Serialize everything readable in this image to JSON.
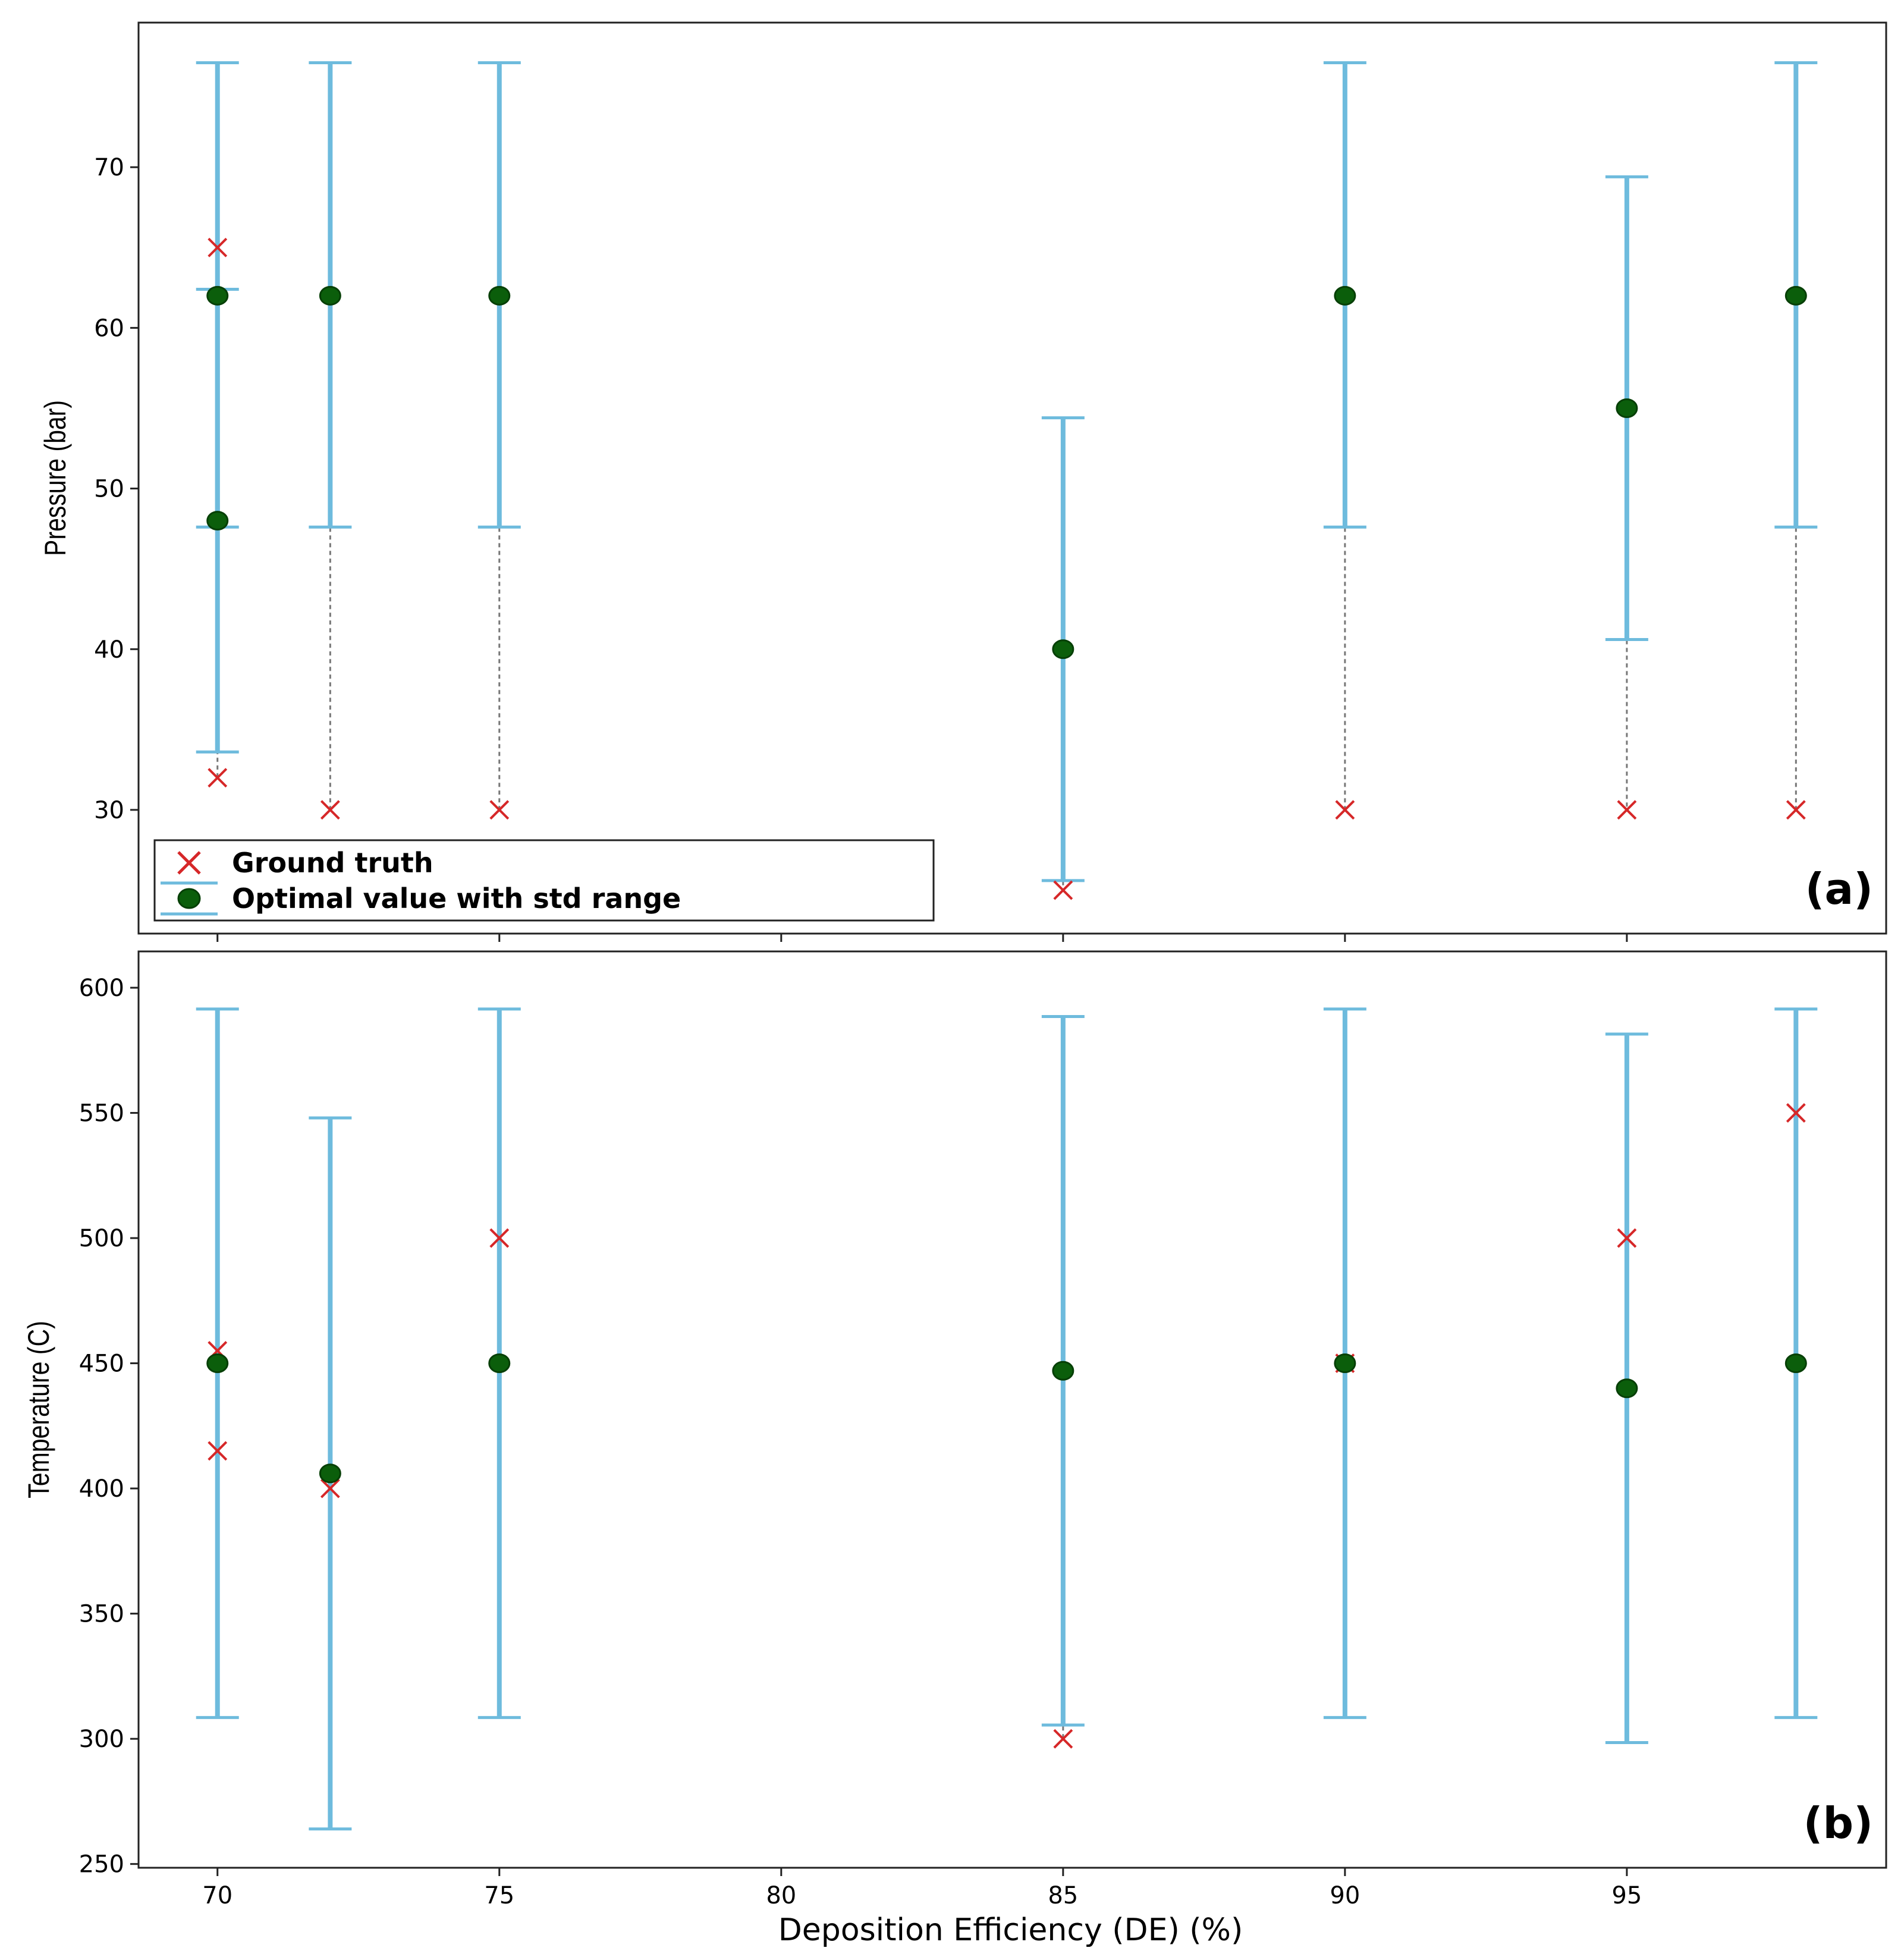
{
  "chart_data": [
    {
      "type": "errorbar-scatter",
      "panel_label": "(a)",
      "ylabel": "Pressure (bar)",
      "xlabel": "",
      "xlim": [
        68.6,
        99.6
      ],
      "ylim": [
        22.3,
        79.0
      ],
      "yticks": [
        30,
        40,
        50,
        60,
        70
      ],
      "xticks": [
        70,
        75,
        80,
        85,
        90,
        95
      ],
      "legend": {
        "placement": "lower-left",
        "entries": [
          "Ground truth",
          "Optimal value with std range"
        ]
      },
      "colors": {
        "error_bar": "#6EBBDD",
        "optimal": "#0B5E0B",
        "optimal_edge": "#063F06",
        "ground_truth": "#D62728",
        "connector": "#777777"
      },
      "series": [
        {
          "name": "Optimal value with std range",
          "points": [
            {
              "x": 70,
              "y": 62,
              "low": 47.6,
              "high": 76.5
            },
            {
              "x": 70,
              "y": 48,
              "low": 33.6,
              "high": 62.4
            },
            {
              "x": 72,
              "y": 62,
              "low": 47.6,
              "high": 76.5
            },
            {
              "x": 75,
              "y": 62,
              "low": 47.6,
              "high": 76.5
            },
            {
              "x": 85,
              "y": 40,
              "low": 25.6,
              "high": 54.4
            },
            {
              "x": 90,
              "y": 62,
              "low": 47.6,
              "high": 76.5
            },
            {
              "x": 95,
              "y": 55,
              "low": 40.6,
              "high": 69.4
            },
            {
              "x": 98,
              "y": 62,
              "low": 47.6,
              "high": 76.5
            }
          ]
        },
        {
          "name": "Ground truth",
          "points": [
            {
              "x": 70,
              "y": 65
            },
            {
              "x": 70,
              "y": 32
            },
            {
              "x": 72,
              "y": 30
            },
            {
              "x": 75,
              "y": 30
            },
            {
              "x": 85,
              "y": 25
            },
            {
              "x": 90,
              "y": 30
            },
            {
              "x": 95,
              "y": 30
            },
            {
              "x": 98,
              "y": 30
            }
          ]
        }
      ],
      "connectors": [
        {
          "x": 70,
          "from": 65,
          "to": 32
        },
        {
          "x": 72,
          "from": 62,
          "to": 30
        },
        {
          "x": 75,
          "from": 62,
          "to": 30
        },
        {
          "x": 85,
          "from": 40,
          "to": 25
        },
        {
          "x": 90,
          "from": 62,
          "to": 30
        },
        {
          "x": 95,
          "from": 55,
          "to": 30
        },
        {
          "x": 98,
          "from": 62,
          "to": 30
        }
      ]
    },
    {
      "type": "errorbar-scatter",
      "panel_label": "(b)",
      "ylabel": "Temperature (C)",
      "xlabel": "Deposition Efficiency (DE) (%)",
      "xlim": [
        68.6,
        99.6
      ],
      "ylim": [
        248.5,
        614.5
      ],
      "yticks": [
        250,
        300,
        350,
        400,
        450,
        500,
        550,
        600
      ],
      "xticks": [
        70,
        75,
        80,
        85,
        90,
        95
      ],
      "colors": {
        "error_bar": "#6EBBDD",
        "optimal": "#0B5E0B",
        "optimal_edge": "#063F06",
        "ground_truth": "#D62728",
        "connector": "#777777"
      },
      "series": [
        {
          "name": "Optimal value with std range",
          "points": [
            {
              "x": 70,
              "y": 450,
              "low": 308.5,
              "high": 591.5
            },
            {
              "x": 72,
              "y": 406,
              "low": 264,
              "high": 548
            },
            {
              "x": 75,
              "y": 450,
              "low": 308.5,
              "high": 591.5
            },
            {
              "x": 85,
              "y": 447,
              "low": 305.5,
              "high": 588.5
            },
            {
              "x": 90,
              "y": 450,
              "low": 308.5,
              "high": 591.5
            },
            {
              "x": 95,
              "y": 440,
              "low": 298.5,
              "high": 581.5
            },
            {
              "x": 98,
              "y": 450,
              "low": 308.5,
              "high": 591.5
            }
          ]
        },
        {
          "name": "Ground truth",
          "points": [
            {
              "x": 70,
              "y": 455
            },
            {
              "x": 70,
              "y": 415
            },
            {
              "x": 72,
              "y": 400
            },
            {
              "x": 75,
              "y": 500
            },
            {
              "x": 85,
              "y": 300
            },
            {
              "x": 90,
              "y": 450
            },
            {
              "x": 95,
              "y": 500
            },
            {
              "x": 98,
              "y": 550
            }
          ]
        }
      ],
      "connectors": [
        {
          "x": 70,
          "from": 455,
          "to": 415
        },
        {
          "x": 72,
          "from": 406,
          "to": 400
        },
        {
          "x": 75,
          "from": 500,
          "to": 450
        },
        {
          "x": 85,
          "from": 447,
          "to": 300
        },
        {
          "x": 95,
          "from": 500,
          "to": 440
        },
        {
          "x": 98,
          "from": 550,
          "to": 450
        }
      ]
    }
  ]
}
